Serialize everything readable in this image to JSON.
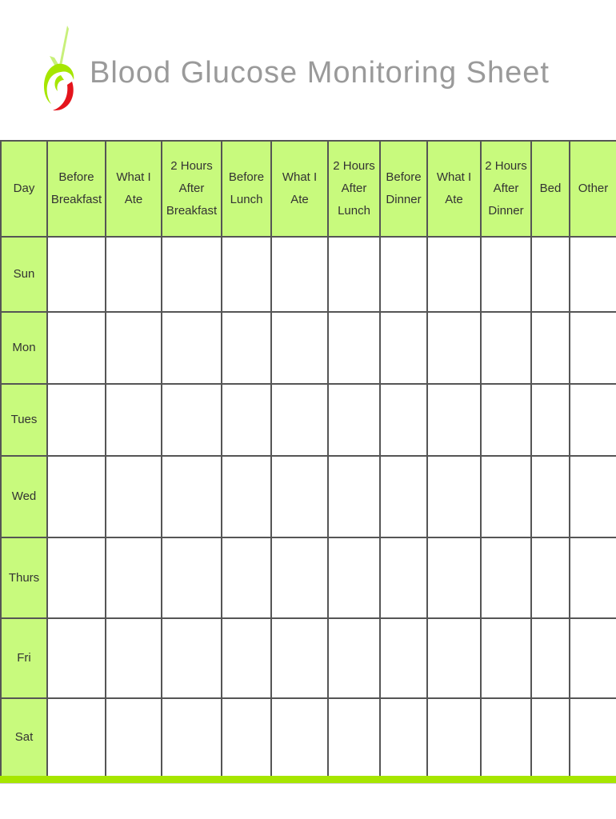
{
  "header": {
    "title": "Blood Glucose Monitoring Sheet"
  },
  "colors": {
    "header_bg": "#c8fa7d",
    "accent_bar": "#a6e600",
    "title": "#9a9a9a",
    "logo_green": "#a6e600",
    "logo_red": "#e4141c"
  },
  "table": {
    "columns": [
      [
        "Day"
      ],
      [
        "Before",
        "Breakfast"
      ],
      [
        "What I",
        "Ate"
      ],
      [
        "2 Hours",
        "After",
        "Breakfast"
      ],
      [
        "Before",
        "Lunch"
      ],
      [
        "What I",
        "Ate"
      ],
      [
        "2 Hours",
        "After",
        "Lunch"
      ],
      [
        "Before",
        "Dinner"
      ],
      [
        "What I",
        "Ate"
      ],
      [
        "2 Hours",
        "After",
        "Dinner"
      ],
      [
        "Bed"
      ],
      [
        "Other"
      ]
    ],
    "days": [
      "Sun",
      "Mon",
      "Tues",
      "Wed",
      "Thurs",
      "Fri",
      "Sat"
    ]
  }
}
